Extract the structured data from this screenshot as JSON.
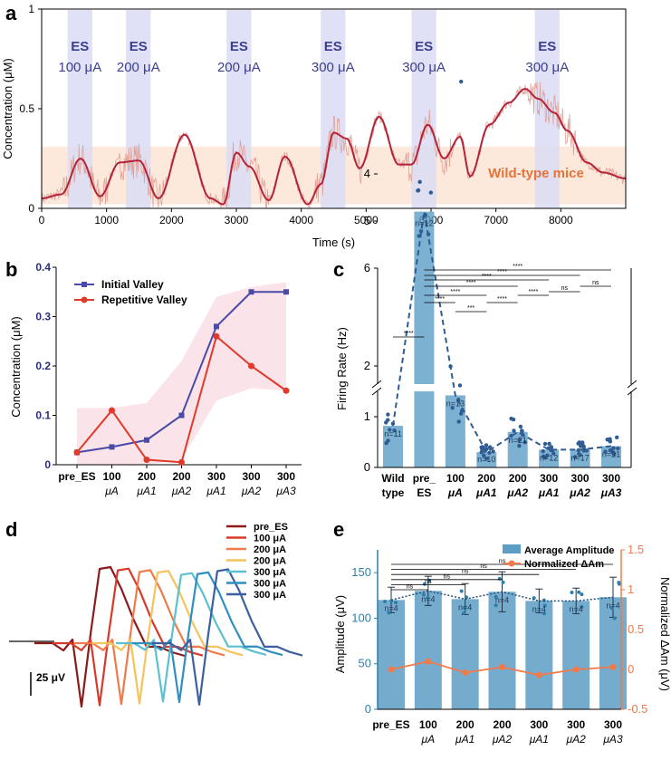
{
  "figure_title": "",
  "colors": {
    "band": "#dadcf4",
    "band_text": "#3a3f8f",
    "wildtype_band": "#fde9dc",
    "wildtype_text": "#e8733a",
    "trace_raw": "#e1a197",
    "trace_smooth": "#b3243a",
    "initial_valley": "#4a4aa8",
    "repetitive_valley": "#e03a2a",
    "shade_b": "#fbe3ea",
    "bar_blue": "#5d9ec6",
    "bar_dark": "#2f5c93",
    "amp_axis": "#2f7ea8",
    "norm_line": "#f07a4a",
    "trace_colors": [
      "#8b1a1a",
      "#d63a2a",
      "#f07a4a",
      "#f5c35a",
      "#5bc0cf",
      "#2f8fbf",
      "#3c5fa0"
    ]
  },
  "chart_data": [
    {
      "panel": "a",
      "type": "line",
      "xlabel": "Time (s)",
      "ylabel": "Concentration (μM)",
      "xlim": [
        0,
        9000
      ],
      "ylim": [
        0,
        1
      ],
      "xticks": [
        0,
        1000,
        2000,
        3000,
        4000,
        5000,
        6000,
        7000,
        8000
      ],
      "yticks": [
        0,
        0.5,
        1
      ],
      "ytick_labels": [
        "0",
        "0.5",
        "1"
      ],
      "es_label": "ES",
      "stim_windows": [
        {
          "start": 400,
          "end": 780,
          "current": "100 μA"
        },
        {
          "start": 1300,
          "end": 1680,
          "current": "200 μA"
        },
        {
          "start": 2850,
          "end": 3230,
          "current": "200 μA"
        },
        {
          "start": 4300,
          "end": 4680,
          "current": "300 μA"
        },
        {
          "start": 5700,
          "end": 6080,
          "current": "300 μA"
        },
        {
          "start": 7600,
          "end": 7980,
          "current": "300 μA"
        }
      ],
      "reference_band": {
        "ymin": 0.02,
        "ymax": 0.31,
        "label": "Wild-type mice"
      },
      "series_key_points": {
        "x": [
          0,
          300,
          600,
          900,
          1200,
          1500,
          1800,
          2200,
          2600,
          2800,
          3000,
          3200,
          3500,
          3750,
          4100,
          4300,
          4500,
          4700,
          4900,
          5200,
          5500,
          5700,
          5950,
          6200,
          6450,
          6600,
          6900,
          7200,
          7450,
          7650,
          7900,
          8100,
          8400,
          8650,
          9000
        ],
        "y": [
          0.05,
          0.07,
          0.25,
          0.06,
          0.23,
          0.24,
          0.05,
          0.37,
          0.05,
          0.02,
          0.28,
          0.21,
          0.04,
          0.26,
          0.02,
          0.12,
          0.38,
          0.35,
          0.2,
          0.46,
          0.22,
          0.22,
          0.42,
          0.25,
          0.36,
          0.16,
          0.42,
          0.53,
          0.6,
          0.55,
          0.48,
          0.39,
          0.23,
          0.18,
          0.15
        ]
      }
    },
    {
      "panel": "b",
      "type": "line",
      "ylabel": "Concentration (μM)",
      "ylim": [
        0,
        0.4
      ],
      "yticks": [
        0,
        0.1,
        0.2,
        0.3,
        0.4
      ],
      "ytick_labels": [
        "0",
        "0.1",
        "0.2",
        "0.3",
        "0.4"
      ],
      "categories": [
        {
          "top": "pre_ES",
          "bottom": ""
        },
        {
          "top": "100",
          "bottom": "μA"
        },
        {
          "top": "200",
          "bottom": "μA1"
        },
        {
          "top": "200",
          "bottom": "μA2"
        },
        {
          "top": "300",
          "bottom": "μA1"
        },
        {
          "top": "300",
          "bottom": "μA2"
        },
        {
          "top": "300",
          "bottom": "μA3"
        }
      ],
      "series": [
        {
          "name": "Initial Valley",
          "values": [
            0.025,
            0.036,
            0.05,
            0.1,
            0.28,
            0.35,
            0.35
          ]
        },
        {
          "name": "Repetitive Valley",
          "values": [
            0.025,
            0.11,
            0.01,
            0.005,
            0.26,
            0.2,
            0.15
          ]
        }
      ]
    },
    {
      "panel": "c",
      "type": "bar",
      "ylabel": "Firing Rate (Hz)",
      "yticks": [
        0,
        1,
        2,
        4,
        5,
        6
      ],
      "ytick_labels": [
        "0",
        "1",
        "2",
        "4",
        "5",
        "6"
      ],
      "categories": [
        {
          "top": "Wild",
          "bottom": "type"
        },
        {
          "top": "pre_",
          "bottom": "ES"
        },
        {
          "top": "100",
          "bottom": "μA"
        },
        {
          "top": "200",
          "bottom": "μA1"
        },
        {
          "top": "200",
          "bottom": "μA2"
        },
        {
          "top": "300",
          "bottom": "μA1"
        },
        {
          "top": "300",
          "bottom": "μA2"
        },
        {
          "top": "300",
          "bottom": "μA3"
        }
      ],
      "values": [
        0.82,
        4.8,
        1.42,
        0.3,
        0.7,
        0.35,
        0.35,
        0.42
      ],
      "n_labels": [
        "n=11",
        "n=12",
        "n=13",
        "n=10",
        "n=21",
        "n=12",
        "n=17",
        "n=21"
      ],
      "significance": [
        {
          "from": 0,
          "to": 1,
          "label": "****"
        },
        {
          "from": 1,
          "to": 2,
          "label": "****"
        },
        {
          "from": 2,
          "to": 3,
          "label": "***"
        },
        {
          "from": 1,
          "to": 3,
          "label": "****"
        },
        {
          "from": 3,
          "to": 4,
          "label": "****"
        },
        {
          "from": 1,
          "to": 4,
          "label": "****"
        },
        {
          "from": 4,
          "to": 5,
          "label": "****"
        },
        {
          "from": 5,
          "to": 6,
          "label": "ns"
        },
        {
          "from": 1,
          "to": 5,
          "label": "****"
        },
        {
          "from": 6,
          "to": 7,
          "label": "ns"
        },
        {
          "from": 1,
          "to": 6,
          "label": "****"
        },
        {
          "from": 1,
          "to": 7,
          "label": "****"
        }
      ]
    },
    {
      "panel": "d",
      "type": "line",
      "scale_bar_label": "25 μV",
      "legend": [
        "pre_ES",
        "100 μA",
        "200 μA",
        "200 μA",
        "300 μA",
        "300 μA",
        "300 μA"
      ]
    },
    {
      "panel": "e",
      "type": "bar",
      "ylabel_left": "Amplitude (μV)",
      "ylabel_right": "Normalized ΔAm (μV)",
      "ylim_left": [
        0,
        175
      ],
      "ylim_right": [
        -0.5,
        1.5
      ],
      "yticks_left": [
        0,
        50,
        100,
        150
      ],
      "ytick_labels_left": [
        "0",
        "50",
        "100",
        "150"
      ],
      "yticks_right": [
        -0.5,
        0,
        0.5,
        1,
        1.5
      ],
      "ytick_labels_right": [
        "-0.5",
        "0",
        "0.5",
        "1",
        "1.5"
      ],
      "categories": [
        {
          "top": "pre_ES",
          "bottom": ""
        },
        {
          "top": "100",
          "bottom": "μA"
        },
        {
          "top": "200",
          "bottom": "μA1"
        },
        {
          "top": "200",
          "bottom": "μA2"
        },
        {
          "top": "300",
          "bottom": "μA1"
        },
        {
          "top": "300",
          "bottom": "μA2"
        },
        {
          "top": "300",
          "bottom": "μA3"
        }
      ],
      "series": [
        {
          "name": "Average Amplitude",
          "values": [
            120,
            130,
            121,
            129,
            119,
            119,
            123
          ],
          "errors": [
            14,
            16,
            17,
            22,
            13,
            14,
            22
          ]
        },
        {
          "name": "Normalized ΔAm",
          "values": [
            0,
            0.1,
            -0.04,
            0.03,
            -0.07,
            0,
            0.03
          ]
        }
      ],
      "n_labels": [
        "n=4",
        "n=4",
        "n=4",
        "n=4",
        "n=4",
        "n=4",
        "n=4"
      ],
      "significance_labels": [
        "ns",
        "ns",
        "ns",
        "ns",
        "ns",
        "ns"
      ]
    }
  ],
  "panel_labels": [
    "a",
    "b",
    "c",
    "d",
    "e"
  ]
}
